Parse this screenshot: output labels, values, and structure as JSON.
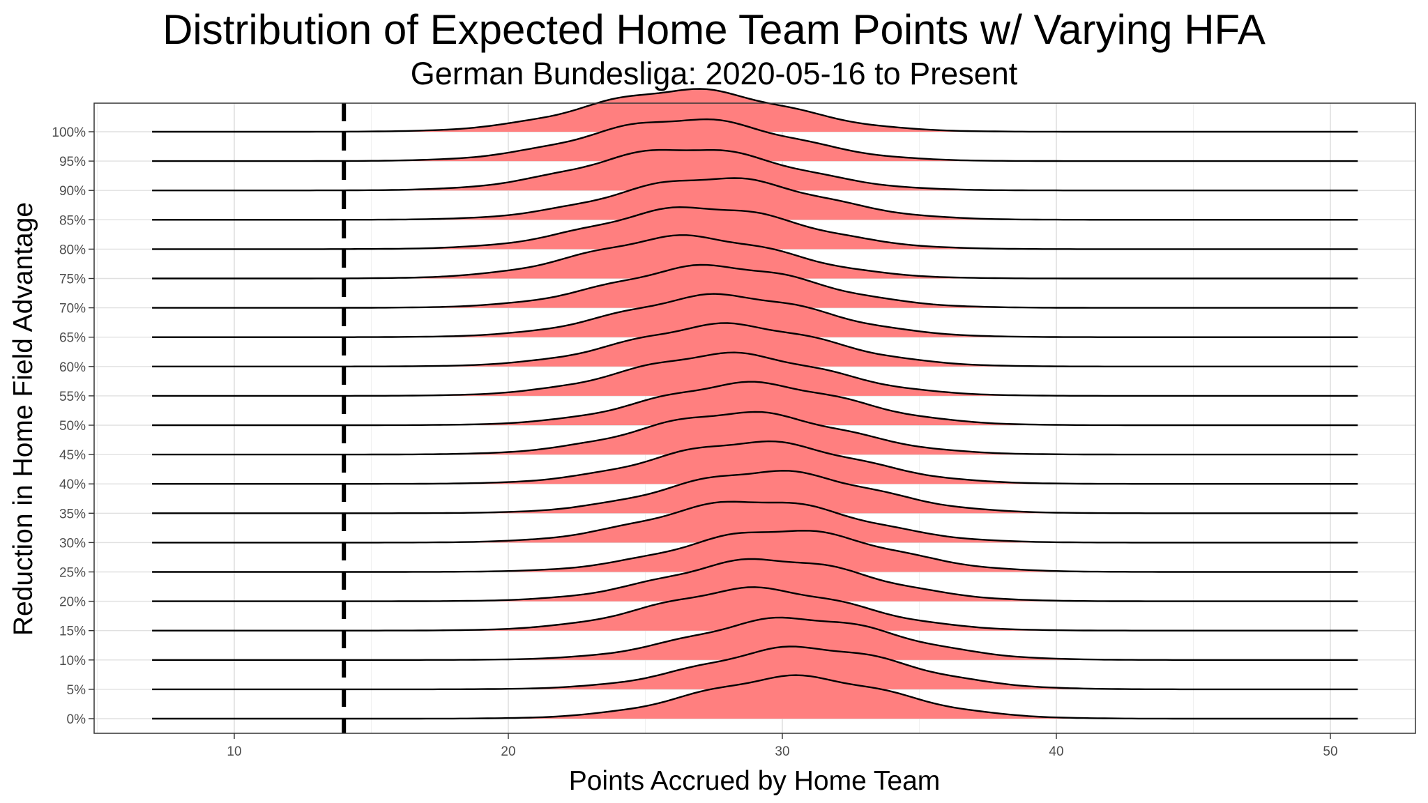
{
  "chart_data": {
    "type": "ridgeline",
    "title": "Distribution of Expected Home Team Points w/ Varying HFA",
    "subtitle": "German Bundesliga: 2020-05-16 to Present",
    "xlabel": "Points Accrued by Home Team",
    "ylabel": "Reduction in Home Field Advantage",
    "xlim": [
      4,
      53
    ],
    "x_ticks": [
      10,
      20,
      30,
      40,
      50
    ],
    "x_tick_labels": [
      "10",
      "20",
      "30",
      "40",
      "50"
    ],
    "density_x_range": [
      7,
      51
    ],
    "reference_line_x": 14,
    "reference_line_style": "dashed",
    "fill_color": "#ff7f7f",
    "line_color": "#000000",
    "grid": true,
    "categories": [
      "0%",
      "5%",
      "10%",
      "15%",
      "20%",
      "25%",
      "30%",
      "35%",
      "40%",
      "45%",
      "50%",
      "55%",
      "60%",
      "65%",
      "70%",
      "75%",
      "80%",
      "85%",
      "90%",
      "95%",
      "100%"
    ],
    "series": [
      {
        "label": "0%",
        "peak_x": 30.5,
        "spread": 3.6
      },
      {
        "label": "5%",
        "peak_x": 30.8,
        "spread": 3.6
      },
      {
        "label": "10%",
        "peak_x": 30.5,
        "spread": 3.6
      },
      {
        "label": "15%",
        "peak_x": 29.0,
        "spread": 3.6
      },
      {
        "label": "20%",
        "peak_x": 29.5,
        "spread": 3.6
      },
      {
        "label": "25%",
        "peak_x": 30.0,
        "spread": 3.6
      },
      {
        "label": "30%",
        "peak_x": 29.0,
        "spread": 3.6
      },
      {
        "label": "35%",
        "peak_x": 29.5,
        "spread": 3.6
      },
      {
        "label": "40%",
        "peak_x": 29.0,
        "spread": 3.6
      },
      {
        "label": "45%",
        "peak_x": 28.5,
        "spread": 3.6
      },
      {
        "label": "50%",
        "peak_x": 28.8,
        "spread": 3.6
      },
      {
        "label": "55%",
        "peak_x": 28.0,
        "spread": 3.6
      },
      {
        "label": "60%",
        "peak_x": 28.0,
        "spread": 3.6
      },
      {
        "label": "65%",
        "peak_x": 27.8,
        "spread": 3.6
      },
      {
        "label": "70%",
        "peak_x": 27.5,
        "spread": 3.6
      },
      {
        "label": "75%",
        "peak_x": 26.5,
        "spread": 3.6
      },
      {
        "label": "80%",
        "peak_x": 27.0,
        "spread": 3.6
      },
      {
        "label": "85%",
        "peak_x": 27.5,
        "spread": 3.6
      },
      {
        "label": "90%",
        "peak_x": 26.5,
        "spread": 3.6
      },
      {
        "label": "95%",
        "peak_x": 26.5,
        "spread": 3.6
      },
      {
        "label": "100%",
        "peak_x": 26.5,
        "spread": 3.6
      }
    ]
  }
}
